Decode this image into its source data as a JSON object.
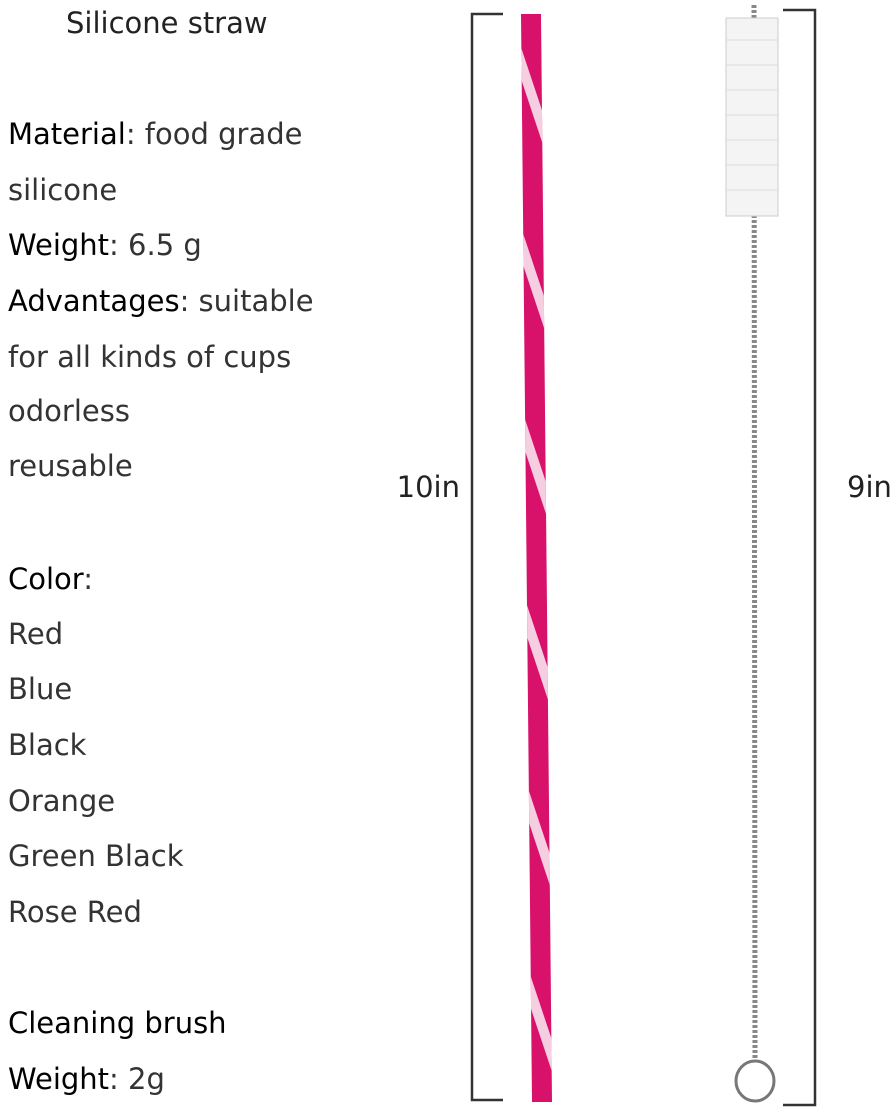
{
  "title": "Silicone straw",
  "straw": {
    "material": {
      "label": "Material",
      "value": ": food grade silicone"
    },
    "weight": {
      "label": "Weight",
      "value": ": 6.5 g"
    },
    "advantages": {
      "label": "Advantages",
      "value": ": suitable for all kinds of cups",
      "more": [
        "odorless",
        "reusable"
      ]
    },
    "color": {
      "label": "Color",
      "value": ":",
      "options": [
        "Red",
        "Blue",
        "Black",
        "Orange",
        "Green Black",
        "Rose Red"
      ]
    },
    "length": "10in"
  },
  "brush": {
    "title": "Cleaning brush",
    "weight": {
      "label": "Weight",
      "value": ": 2g"
    },
    "length": "9in"
  }
}
